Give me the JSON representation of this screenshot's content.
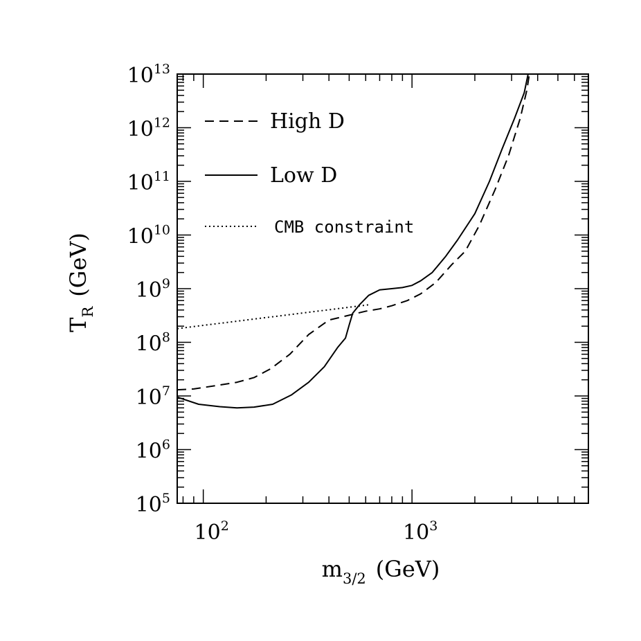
{
  "chart_data": {
    "type": "line",
    "xscale": "log",
    "yscale": "log",
    "xlim": [
      75,
      7000
    ],
    "ylim": [
      100000,
      10000000000000
    ],
    "xlabel": {
      "main": "m",
      "sub": "3/2",
      "unit": "(GeV)"
    },
    "ylabel": {
      "main": "T",
      "sub": "R",
      "unit": "(GeV)"
    },
    "x_tick_labels": [
      {
        "value": 100,
        "base": "10",
        "exp": "2"
      },
      {
        "value": 1000,
        "base": "10",
        "exp": "3"
      }
    ],
    "y_tick_labels": [
      {
        "value": 100000,
        "base": "10",
        "exp": "5"
      },
      {
        "value": 1000000,
        "base": "10",
        "exp": "6"
      },
      {
        "value": 10000000,
        "base": "10",
        "exp": "7"
      },
      {
        "value": 100000000,
        "base": "10",
        "exp": "8"
      },
      {
        "value": 1000000000,
        "base": "10",
        "exp": "9"
      },
      {
        "value": 10000000000,
        "base": "10",
        "exp": "10"
      },
      {
        "value": 100000000000,
        "base": "10",
        "exp": "11"
      },
      {
        "value": 1000000000000,
        "base": "10",
        "exp": "12"
      },
      {
        "value": 10000000000000,
        "base": "10",
        "exp": "13"
      }
    ],
    "legend_position": "top-left",
    "series": [
      {
        "name": "High D",
        "style": "dashed",
        "points": [
          [
            75,
            13000000
          ],
          [
            90,
            13500000
          ],
          [
            120,
            16000000
          ],
          [
            145,
            18000000
          ],
          [
            175,
            22000000
          ],
          [
            210,
            32000000
          ],
          [
            260,
            60000000
          ],
          [
            320,
            140000000
          ],
          [
            400,
            260000000
          ],
          [
            500,
            320000000
          ],
          [
            600,
            380000000
          ],
          [
            700,
            420000000
          ],
          [
            800,
            480000000
          ],
          [
            950,
            600000000
          ],
          [
            1100,
            800000000
          ],
          [
            1300,
            1300000000
          ],
          [
            1550,
            2800000000
          ],
          [
            1800,
            5000000000
          ],
          [
            2100,
            15000000000
          ],
          [
            2500,
            70000000000
          ],
          [
            2900,
            300000000000
          ],
          [
            3300,
            1500000000000
          ],
          [
            3550,
            5000000000000
          ],
          [
            3650,
            10000000000000
          ]
        ]
      },
      {
        "name": "Low D",
        "style": "solid",
        "points": [
          [
            75,
            9500000
          ],
          [
            95,
            7000000
          ],
          [
            120,
            6300000
          ],
          [
            145,
            6000000
          ],
          [
            175,
            6200000
          ],
          [
            215,
            7000000
          ],
          [
            265,
            10500000
          ],
          [
            320,
            18000000
          ],
          [
            380,
            35000000
          ],
          [
            440,
            80000000
          ],
          [
            480,
            120000000
          ],
          [
            500,
            210000000
          ],
          [
            520,
            350000000
          ],
          [
            560,
            500000000
          ],
          [
            620,
            750000000
          ],
          [
            700,
            950000000
          ],
          [
            800,
            1000000000
          ],
          [
            900,
            1050000000
          ],
          [
            1000,
            1150000000
          ],
          [
            1100,
            1400000000
          ],
          [
            1250,
            2000000000
          ],
          [
            1450,
            4000000000
          ],
          [
            1650,
            8000000000
          ],
          [
            2000,
            25000000000
          ],
          [
            2350,
            100000000000
          ],
          [
            2700,
            400000000000
          ],
          [
            3100,
            1500000000000
          ],
          [
            3450,
            4500000000000
          ],
          [
            3600,
            10000000000000
          ]
        ]
      },
      {
        "name": "CMB constraint",
        "style": "dotted",
        "points": [
          [
            75,
            180000000
          ],
          [
            620,
            500000000
          ]
        ]
      }
    ]
  }
}
